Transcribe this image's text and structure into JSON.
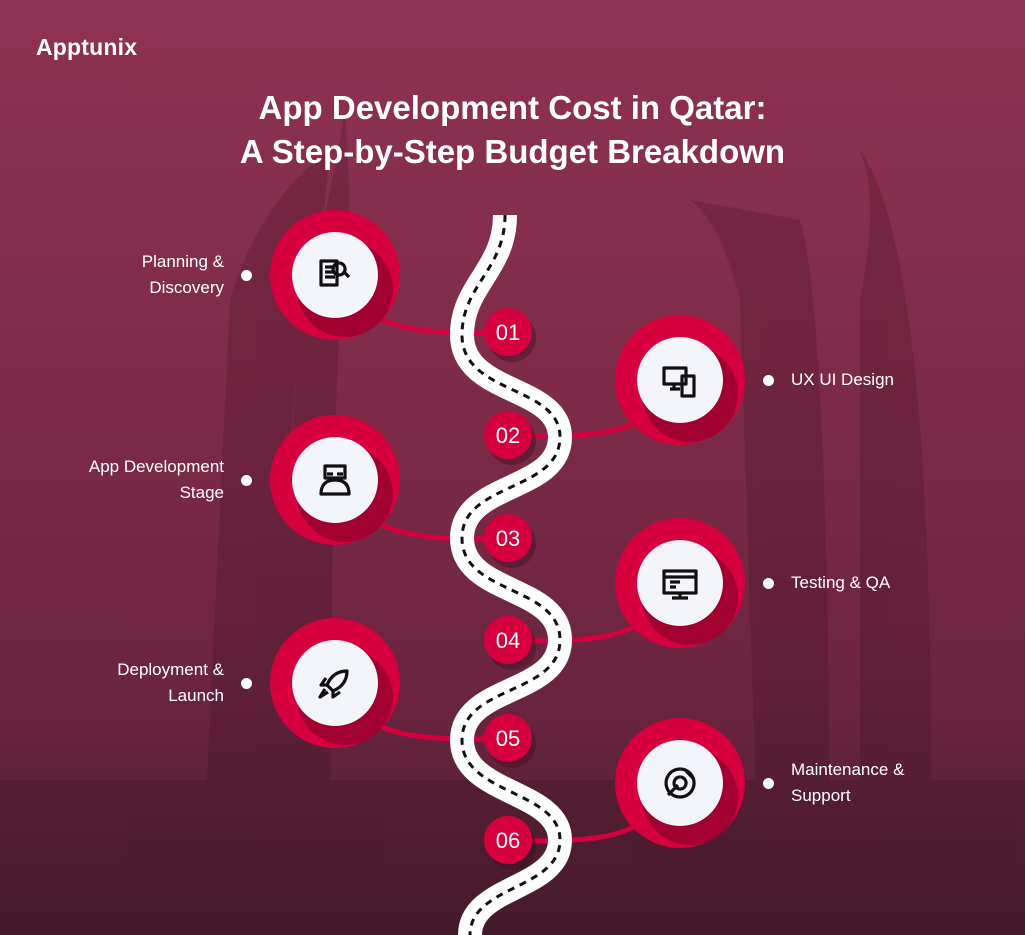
{
  "brand": {
    "logo_text": "Apptunix"
  },
  "title": {
    "line1": "App Development Cost in Qatar:",
    "line2": "A Step-by-Step Budget Breakdown"
  },
  "colors": {
    "accent": "#d6003f",
    "background": "#7c2a48",
    "road": "#ffffff"
  },
  "steps": [
    {
      "number": "01",
      "label_lines": [
        "Planning &",
        "Discovery"
      ],
      "side": "left",
      "icon": "document-search-icon"
    },
    {
      "number": "02",
      "label_lines": [
        "UX UI Design"
      ],
      "side": "right",
      "icon": "devices-icon"
    },
    {
      "number": "03",
      "label_lines": [
        "App Development",
        "Stage"
      ],
      "side": "left",
      "icon": "developer-icon"
    },
    {
      "number": "04",
      "label_lines": [
        "Testing & QA"
      ],
      "side": "right",
      "icon": "monitor-test-icon"
    },
    {
      "number": "05",
      "label_lines": [
        "Deployment &",
        "Launch"
      ],
      "side": "left",
      "icon": "rocket-icon"
    },
    {
      "number": "06",
      "label_lines": [
        "Maintenance &",
        "Support"
      ],
      "side": "right",
      "icon": "gear-wrench-icon"
    }
  ]
}
